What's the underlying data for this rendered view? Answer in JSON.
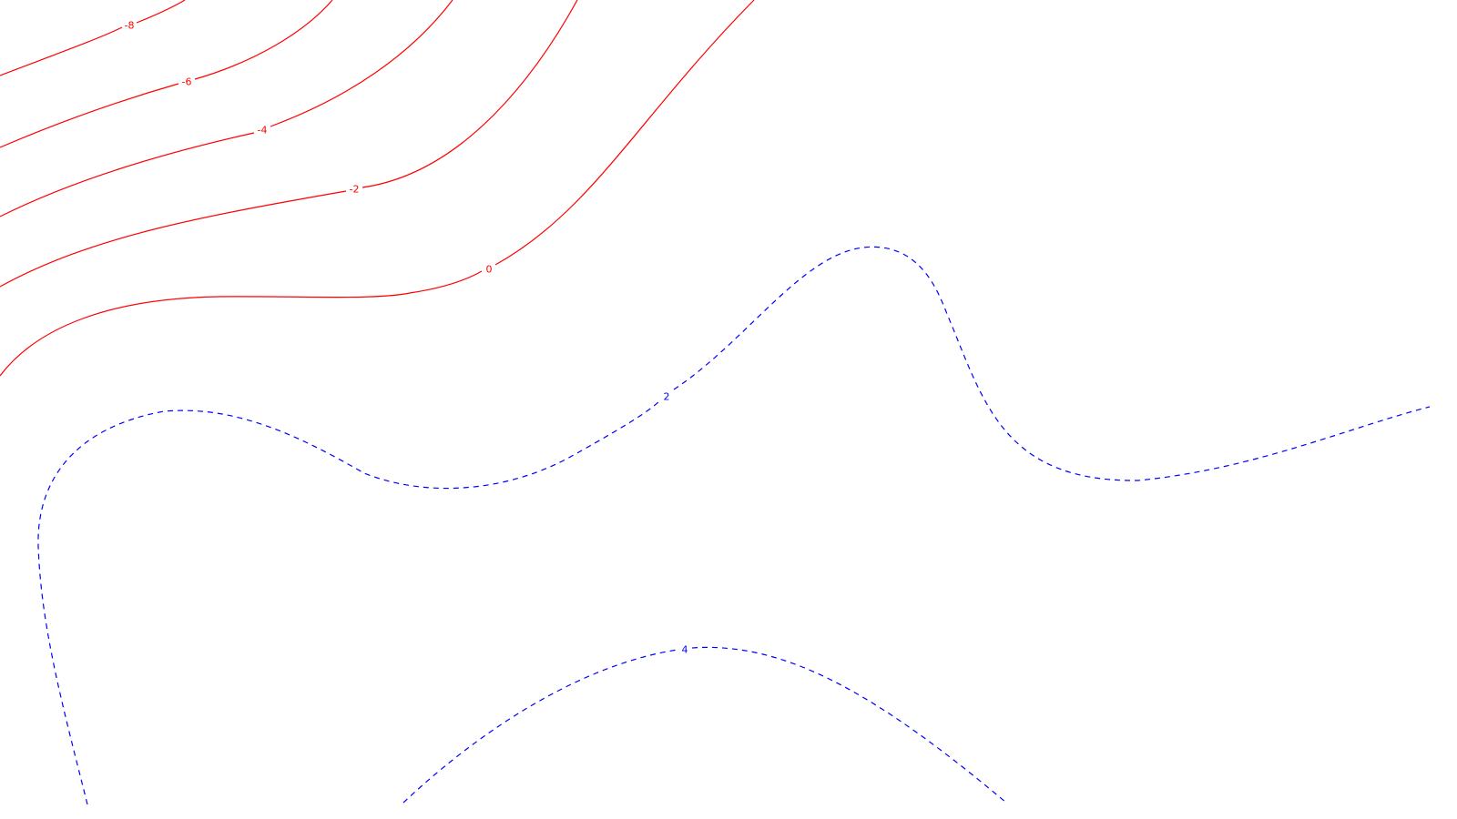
{
  "chart_data": {
    "type": "contour",
    "title": "",
    "xlabel": "",
    "ylabel": "",
    "grid": false,
    "legend": "none",
    "negative_style": {
      "color": "#ff0000",
      "line": "solid"
    },
    "positive_style": {
      "color": "#0000ff",
      "line": "dashed"
    },
    "levels": [
      {
        "level": -8,
        "label": "-8",
        "sign": "negative"
      },
      {
        "level": -6,
        "label": "-6",
        "sign": "negative"
      },
      {
        "level": -4,
        "label": "-4",
        "sign": "negative"
      },
      {
        "level": -2,
        "label": "-2",
        "sign": "negative"
      },
      {
        "level": 0,
        "label": "0",
        "sign": "negative"
      },
      {
        "level": 2,
        "label": "2",
        "sign": "positive"
      },
      {
        "level": 4,
        "label": "4",
        "sign": "positive"
      }
    ]
  }
}
